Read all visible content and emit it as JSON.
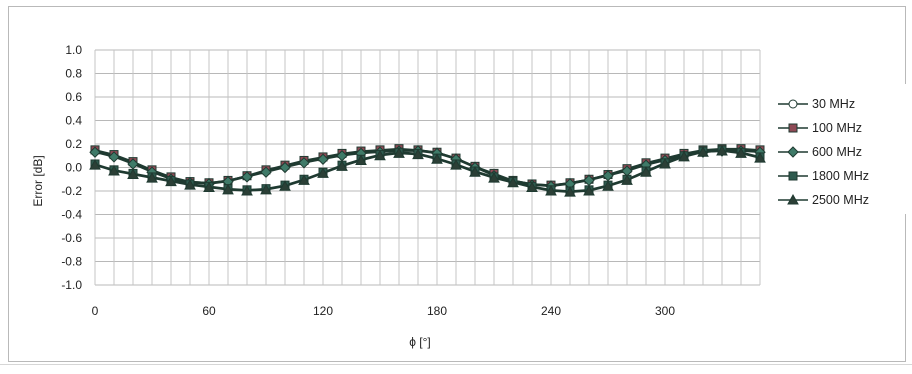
{
  "chart_data": {
    "type": "line",
    "title": "",
    "xlabel": "ϕ [°]",
    "ylabel": "Error [dB]",
    "xlim": [
      0,
      350
    ],
    "ylim": [
      -1.0,
      1.0
    ],
    "x_ticks": [
      0,
      60,
      120,
      180,
      240,
      300
    ],
    "x_tick_labels": [
      "0",
      "60",
      "120",
      "180",
      "240",
      "300"
    ],
    "y_ticks": [
      1.0,
      0.8,
      0.6,
      0.4,
      0.2,
      0.0,
      -0.2,
      -0.4,
      -0.6,
      -0.8,
      -1.0
    ],
    "y_tick_labels": [
      "1.0",
      "0.8",
      "0.6",
      "0.4",
      "0.2",
      "0.0",
      "-0.2",
      "-0.4",
      "-0.6",
      "-0.8",
      "-1.0"
    ],
    "grid": true,
    "legend_position": "right",
    "x": [
      0,
      10,
      20,
      30,
      40,
      50,
      60,
      70,
      80,
      90,
      100,
      110,
      120,
      130,
      140,
      150,
      160,
      170,
      180,
      190,
      200,
      210,
      220,
      230,
      240,
      250,
      260,
      270,
      280,
      290,
      300,
      310,
      320,
      330,
      340,
      350
    ],
    "series": [
      {
        "name": "30 MHz",
        "marker": "circle",
        "color": "#ffffff",
        "values": [
          0.14,
          0.1,
          0.04,
          -0.03,
          -0.09,
          -0.12,
          -0.13,
          -0.11,
          -0.07,
          -0.03,
          0.01,
          0.05,
          0.08,
          0.11,
          0.13,
          0.14,
          0.15,
          0.15,
          0.13,
          0.08,
          0.01,
          -0.06,
          -0.11,
          -0.14,
          -0.15,
          -0.13,
          -0.1,
          -0.06,
          -0.02,
          0.03,
          0.07,
          0.11,
          0.14,
          0.15,
          0.15,
          0.14
        ]
      },
      {
        "name": "100 MHz",
        "marker": "square",
        "color": "#8e4a55",
        "values": [
          0.15,
          0.11,
          0.05,
          -0.02,
          -0.08,
          -0.12,
          -0.13,
          -0.11,
          -0.07,
          -0.02,
          0.02,
          0.06,
          0.09,
          0.12,
          0.14,
          0.15,
          0.16,
          0.15,
          0.13,
          0.08,
          0.01,
          -0.05,
          -0.11,
          -0.14,
          -0.15,
          -0.13,
          -0.1,
          -0.06,
          -0.01,
          0.04,
          0.08,
          0.12,
          0.15,
          0.16,
          0.16,
          0.15
        ]
      },
      {
        "name": "600 MHz",
        "marker": "diamond",
        "color": "#3f7a68",
        "values": [
          0.13,
          0.09,
          0.03,
          -0.04,
          -0.1,
          -0.13,
          -0.14,
          -0.12,
          -0.08,
          -0.04,
          0.0,
          0.04,
          0.07,
          0.1,
          0.12,
          0.13,
          0.14,
          0.14,
          0.12,
          0.07,
          0.0,
          -0.07,
          -0.12,
          -0.15,
          -0.16,
          -0.14,
          -0.11,
          -0.07,
          -0.03,
          0.02,
          0.06,
          0.1,
          0.13,
          0.14,
          0.14,
          0.13
        ]
      },
      {
        "name": "1800 MHz",
        "marker": "square",
        "color": "#2e5a4e",
        "values": [
          0.03,
          -0.02,
          -0.05,
          -0.08,
          -0.11,
          -0.14,
          -0.16,
          -0.18,
          -0.19,
          -0.18,
          -0.15,
          -0.1,
          -0.04,
          0.02,
          0.07,
          0.11,
          0.13,
          0.12,
          0.08,
          0.03,
          -0.03,
          -0.08,
          -0.12,
          -0.16,
          -0.19,
          -0.2,
          -0.19,
          -0.15,
          -0.1,
          -0.03,
          0.04,
          0.1,
          0.14,
          0.15,
          0.13,
          0.09
        ]
      },
      {
        "name": "2500 MHz",
        "marker": "triangle",
        "color": "#2b3f36",
        "values": [
          0.02,
          -0.03,
          -0.06,
          -0.09,
          -0.12,
          -0.15,
          -0.17,
          -0.19,
          -0.2,
          -0.19,
          -0.16,
          -0.11,
          -0.05,
          0.01,
          0.06,
          0.1,
          0.12,
          0.11,
          0.07,
          0.02,
          -0.04,
          -0.09,
          -0.13,
          -0.17,
          -0.2,
          -0.21,
          -0.2,
          -0.16,
          -0.11,
          -0.04,
          0.03,
          0.09,
          0.13,
          0.14,
          0.12,
          0.08
        ]
      }
    ]
  }
}
